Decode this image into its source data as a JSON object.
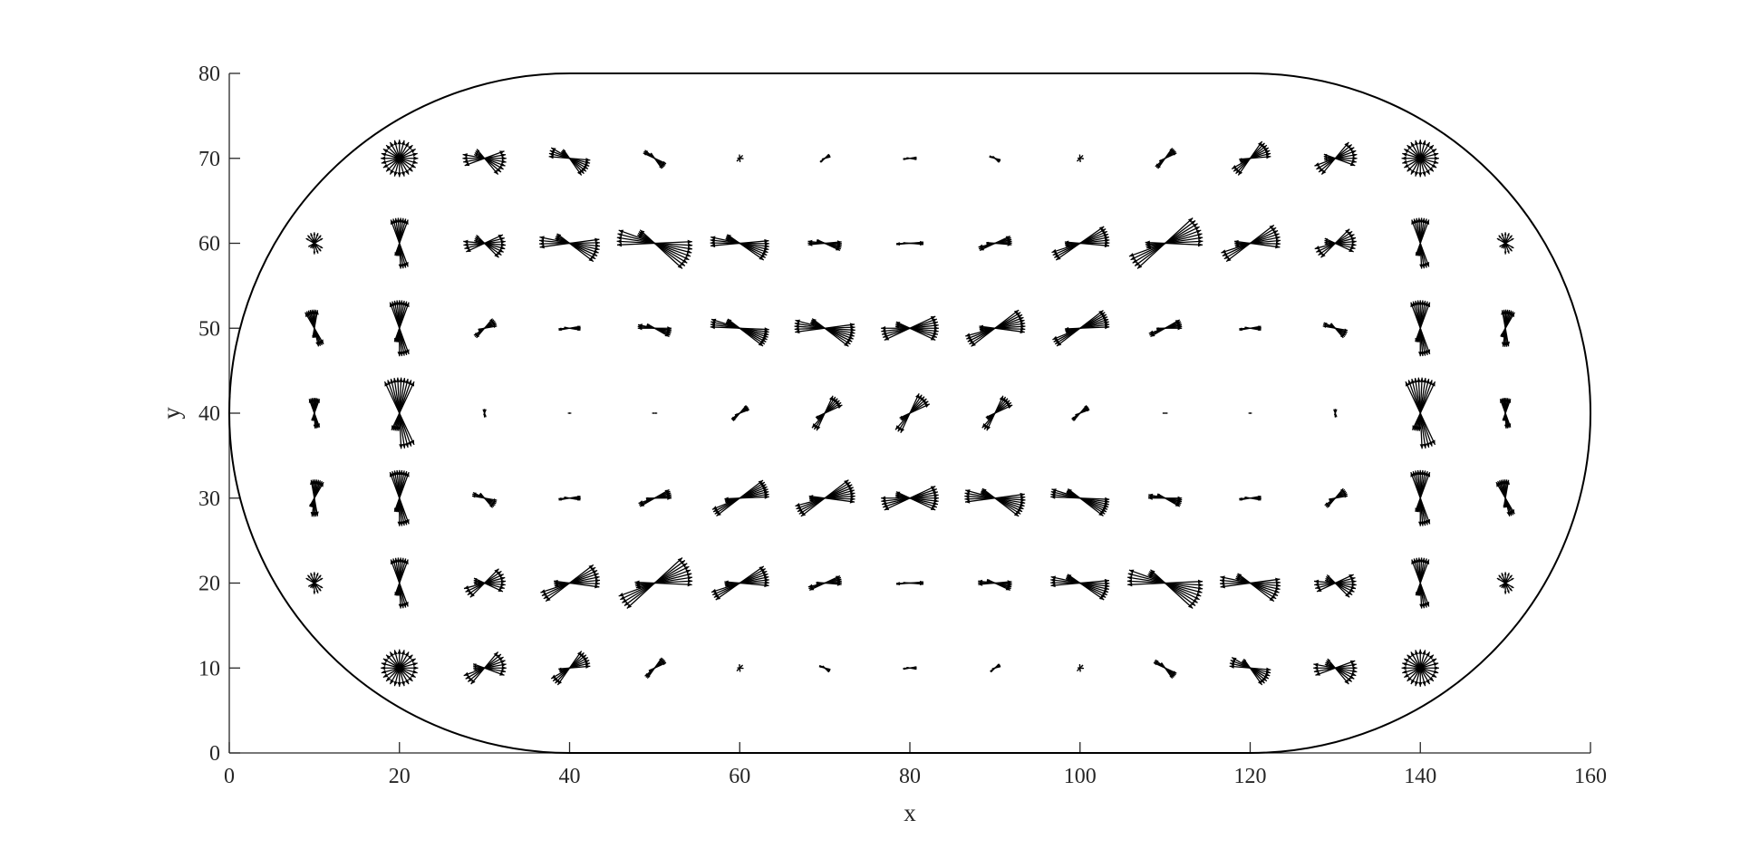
{
  "chart_data": {
    "type": "quiver",
    "title": "",
    "xlabel": "x",
    "ylabel": "y",
    "xlim": [
      0,
      160
    ],
    "ylim": [
      0,
      80
    ],
    "xticks": [
      0,
      20,
      40,
      60,
      80,
      100,
      120,
      140,
      160
    ],
    "yticks": [
      0,
      10,
      20,
      30,
      40,
      50,
      60,
      70,
      80
    ],
    "grid": false,
    "line_color": "#000000",
    "axis_color": "#262626",
    "boundary": {
      "shape": "stadium",
      "straight_x": [
        40,
        120
      ],
      "y": [
        0,
        80
      ],
      "left_cap_center": [
        40,
        40
      ],
      "right_cap_center": [
        120,
        40
      ],
      "cap_radius": 40
    },
    "glyphs": [
      {
        "x": 20,
        "y": 70,
        "rays": 24,
        "length": 2.2,
        "angle": 0,
        "spread": 360
      },
      {
        "x": 30,
        "y": 70,
        "rays": 16,
        "length": 2.6,
        "angle": -15,
        "spread": 70
      },
      {
        "x": 40,
        "y": 70,
        "rays": 14,
        "length": 2.5,
        "angle": -30,
        "spread": 50
      },
      {
        "x": 50,
        "y": 70,
        "rays": 10,
        "length": 1.5,
        "angle": -40,
        "spread": 30
      },
      {
        "x": 60,
        "y": 70,
        "rays": 6,
        "length": 0.5,
        "angle": 45,
        "spread": 100
      },
      {
        "x": 70,
        "y": 70,
        "rays": 8,
        "length": 0.7,
        "angle": 30,
        "spread": 30
      },
      {
        "x": 80,
        "y": 70,
        "rays": 8,
        "length": 0.8,
        "angle": 0,
        "spread": 20
      },
      {
        "x": 90,
        "y": 70,
        "rays": 8,
        "length": 0.7,
        "angle": -30,
        "spread": 30
      },
      {
        "x": 100,
        "y": 70,
        "rays": 6,
        "length": 0.5,
        "angle": 45,
        "spread": 100
      },
      {
        "x": 110,
        "y": 70,
        "rays": 10,
        "length": 1.5,
        "angle": 40,
        "spread": 30
      },
      {
        "x": 120,
        "y": 70,
        "rays": 14,
        "length": 2.5,
        "angle": 30,
        "spread": 50
      },
      {
        "x": 130,
        "y": 70,
        "rays": 16,
        "length": 2.6,
        "angle": 15,
        "spread": 70
      },
      {
        "x": 140,
        "y": 70,
        "rays": 24,
        "length": 2.2,
        "angle": 0,
        "spread": 360
      },
      {
        "x": 10,
        "y": 60,
        "rays": 14,
        "length": 1.3,
        "angle": 90,
        "spread": 120
      },
      {
        "x": 20,
        "y": 60,
        "rays": 16,
        "length": 3.0,
        "angle": 90,
        "spread": 40
      },
      {
        "x": 30,
        "y": 60,
        "rays": 16,
        "length": 2.5,
        "angle": -10,
        "spread": 70
      },
      {
        "x": 40,
        "y": 60,
        "rays": 16,
        "length": 3.6,
        "angle": -15,
        "spread": 45
      },
      {
        "x": 50,
        "y": 60,
        "rays": 18,
        "length": 4.5,
        "angle": -20,
        "spread": 45
      },
      {
        "x": 60,
        "y": 60,
        "rays": 16,
        "length": 3.5,
        "angle": -15,
        "spread": 40
      },
      {
        "x": 70,
        "y": 60,
        "rays": 12,
        "length": 2.0,
        "angle": -10,
        "spread": 30
      },
      {
        "x": 80,
        "y": 60,
        "rays": 8,
        "length": 1.6,
        "angle": 0,
        "spread": 10
      },
      {
        "x": 90,
        "y": 60,
        "rays": 12,
        "length": 2.0,
        "angle": 10,
        "spread": 30
      },
      {
        "x": 100,
        "y": 60,
        "rays": 16,
        "length": 3.5,
        "angle": 15,
        "spread": 40
      },
      {
        "x": 110,
        "y": 60,
        "rays": 18,
        "length": 4.5,
        "angle": 20,
        "spread": 45
      },
      {
        "x": 120,
        "y": 60,
        "rays": 16,
        "length": 3.6,
        "angle": 15,
        "spread": 45
      },
      {
        "x": 130,
        "y": 60,
        "rays": 16,
        "length": 2.5,
        "angle": 10,
        "spread": 70
      },
      {
        "x": 140,
        "y": 60,
        "rays": 16,
        "length": 3.0,
        "angle": 90,
        "spread": 40
      },
      {
        "x": 150,
        "y": 60,
        "rays": 14,
        "length": 1.3,
        "angle": 90,
        "spread": 120
      },
      {
        "x": 10,
        "y": 50,
        "rays": 16,
        "length": 2.2,
        "angle": 100,
        "spread": 40
      },
      {
        "x": 20,
        "y": 50,
        "rays": 18,
        "length": 3.3,
        "angle": 90,
        "spread": 40
      },
      {
        "x": 30,
        "y": 50,
        "rays": 12,
        "length": 1.5,
        "angle": 30,
        "spread": 40
      },
      {
        "x": 40,
        "y": 50,
        "rays": 8,
        "length": 1.3,
        "angle": 0,
        "spread": 20
      },
      {
        "x": 50,
        "y": 50,
        "rays": 12,
        "length": 2.0,
        "angle": -15,
        "spread": 30
      },
      {
        "x": 60,
        "y": 50,
        "rays": 16,
        "length": 3.5,
        "angle": -20,
        "spread": 35
      },
      {
        "x": 70,
        "y": 50,
        "rays": 18,
        "length": 3.6,
        "angle": -15,
        "spread": 45
      },
      {
        "x": 80,
        "y": 50,
        "rays": 18,
        "length": 3.4,
        "angle": 0,
        "spread": 50
      },
      {
        "x": 90,
        "y": 50,
        "rays": 18,
        "length": 3.6,
        "angle": 15,
        "spread": 45
      },
      {
        "x": 100,
        "y": 50,
        "rays": 16,
        "length": 3.5,
        "angle": 20,
        "spread": 35
      },
      {
        "x": 110,
        "y": 50,
        "rays": 12,
        "length": 2.0,
        "angle": 15,
        "spread": 30
      },
      {
        "x": 120,
        "y": 50,
        "rays": 8,
        "length": 1.3,
        "angle": 0,
        "spread": 20
      },
      {
        "x": 130,
        "y": 50,
        "rays": 12,
        "length": 1.5,
        "angle": -30,
        "spread": 40
      },
      {
        "x": 140,
        "y": 50,
        "rays": 18,
        "length": 3.3,
        "angle": 90,
        "spread": 40
      },
      {
        "x": 150,
        "y": 50,
        "rays": 16,
        "length": 2.2,
        "angle": 80,
        "spread": 40
      },
      {
        "x": 10,
        "y": 40,
        "rays": 16,
        "length": 1.8,
        "angle": 90,
        "spread": 40
      },
      {
        "x": 20,
        "y": 40,
        "rays": 20,
        "length": 4.2,
        "angle": 90,
        "spread": 50
      },
      {
        "x": 30,
        "y": 40,
        "rays": 6,
        "length": 0.5,
        "angle": 90,
        "spread": 40
      },
      {
        "x": 40,
        "y": 40,
        "rays": 2,
        "length": 0.2,
        "angle": 0,
        "spread": 0
      },
      {
        "x": 50,
        "y": 40,
        "rays": 2,
        "length": 0.3,
        "angle": 0,
        "spread": 0
      },
      {
        "x": 60,
        "y": 40,
        "rays": 10,
        "length": 1.2,
        "angle": 35,
        "spread": 30
      },
      {
        "x": 70,
        "y": 40,
        "rays": 12,
        "length": 2.3,
        "angle": 45,
        "spread": 40
      },
      {
        "x": 80,
        "y": 40,
        "rays": 12,
        "length": 2.6,
        "angle": 45,
        "spread": 40
      },
      {
        "x": 90,
        "y": 40,
        "rays": 12,
        "length": 2.3,
        "angle": 45,
        "spread": 40
      },
      {
        "x": 100,
        "y": 40,
        "rays": 10,
        "length": 1.2,
        "angle": 35,
        "spread": 30
      },
      {
        "x": 110,
        "y": 40,
        "rays": 2,
        "length": 0.3,
        "angle": 0,
        "spread": 0
      },
      {
        "x": 120,
        "y": 40,
        "rays": 2,
        "length": 0.2,
        "angle": 0,
        "spread": 0
      },
      {
        "x": 130,
        "y": 40,
        "rays": 6,
        "length": 0.5,
        "angle": 90,
        "spread": 40
      },
      {
        "x": 140,
        "y": 40,
        "rays": 20,
        "length": 4.2,
        "angle": 90,
        "spread": 50
      },
      {
        "x": 150,
        "y": 40,
        "rays": 16,
        "length": 1.8,
        "angle": 90,
        "spread": 40
      },
      {
        "x": 10,
        "y": 30,
        "rays": 16,
        "length": 2.2,
        "angle": 80,
        "spread": 40
      },
      {
        "x": 20,
        "y": 30,
        "rays": 18,
        "length": 3.3,
        "angle": 90,
        "spread": 40
      },
      {
        "x": 30,
        "y": 30,
        "rays": 12,
        "length": 1.5,
        "angle": -30,
        "spread": 40
      },
      {
        "x": 40,
        "y": 30,
        "rays": 8,
        "length": 1.3,
        "angle": 0,
        "spread": 20
      },
      {
        "x": 50,
        "y": 30,
        "rays": 12,
        "length": 2.0,
        "angle": 15,
        "spread": 30
      },
      {
        "x": 60,
        "y": 30,
        "rays": 16,
        "length": 3.5,
        "angle": 20,
        "spread": 35
      },
      {
        "x": 70,
        "y": 30,
        "rays": 18,
        "length": 3.6,
        "angle": 15,
        "spread": 45
      },
      {
        "x": 80,
        "y": 30,
        "rays": 18,
        "length": 3.4,
        "angle": 0,
        "spread": 50
      },
      {
        "x": 90,
        "y": 30,
        "rays": 18,
        "length": 3.6,
        "angle": -15,
        "spread": 45
      },
      {
        "x": 100,
        "y": 30,
        "rays": 16,
        "length": 3.5,
        "angle": -20,
        "spread": 35
      },
      {
        "x": 110,
        "y": 30,
        "rays": 12,
        "length": 2.0,
        "angle": -15,
        "spread": 30
      },
      {
        "x": 120,
        "y": 30,
        "rays": 8,
        "length": 1.3,
        "angle": 0,
        "spread": 20
      },
      {
        "x": 130,
        "y": 30,
        "rays": 12,
        "length": 1.5,
        "angle": 30,
        "spread": 40
      },
      {
        "x": 140,
        "y": 30,
        "rays": 18,
        "length": 3.3,
        "angle": 90,
        "spread": 40
      },
      {
        "x": 150,
        "y": 30,
        "rays": 16,
        "length": 2.2,
        "angle": 100,
        "spread": 40
      },
      {
        "x": 10,
        "y": 20,
        "rays": 14,
        "length": 1.3,
        "angle": 90,
        "spread": 120
      },
      {
        "x": 20,
        "y": 20,
        "rays": 16,
        "length": 3.0,
        "angle": 90,
        "spread": 40
      },
      {
        "x": 30,
        "y": 20,
        "rays": 16,
        "length": 2.5,
        "angle": 10,
        "spread": 70
      },
      {
        "x": 40,
        "y": 20,
        "rays": 16,
        "length": 3.6,
        "angle": 15,
        "spread": 45
      },
      {
        "x": 50,
        "y": 20,
        "rays": 18,
        "length": 4.5,
        "angle": 20,
        "spread": 45
      },
      {
        "x": 60,
        "y": 20,
        "rays": 16,
        "length": 3.5,
        "angle": 15,
        "spread": 40
      },
      {
        "x": 70,
        "y": 20,
        "rays": 12,
        "length": 2.0,
        "angle": 10,
        "spread": 30
      },
      {
        "x": 80,
        "y": 20,
        "rays": 8,
        "length": 1.6,
        "angle": 0,
        "spread": 10
      },
      {
        "x": 90,
        "y": 20,
        "rays": 12,
        "length": 2.0,
        "angle": -10,
        "spread": 30
      },
      {
        "x": 100,
        "y": 20,
        "rays": 16,
        "length": 3.5,
        "angle": -15,
        "spread": 40
      },
      {
        "x": 110,
        "y": 20,
        "rays": 18,
        "length": 4.5,
        "angle": -20,
        "spread": 45
      },
      {
        "x": 120,
        "y": 20,
        "rays": 16,
        "length": 3.6,
        "angle": -15,
        "spread": 45
      },
      {
        "x": 130,
        "y": 20,
        "rays": 16,
        "length": 2.5,
        "angle": -10,
        "spread": 70
      },
      {
        "x": 140,
        "y": 20,
        "rays": 16,
        "length": 3.0,
        "angle": 90,
        "spread": 40
      },
      {
        "x": 150,
        "y": 20,
        "rays": 14,
        "length": 1.3,
        "angle": 90,
        "spread": 120
      },
      {
        "x": 20,
        "y": 10,
        "rays": 24,
        "length": 2.2,
        "angle": 0,
        "spread": 360
      },
      {
        "x": 30,
        "y": 10,
        "rays": 16,
        "length": 2.6,
        "angle": 15,
        "spread": 70
      },
      {
        "x": 40,
        "y": 10,
        "rays": 14,
        "length": 2.5,
        "angle": 30,
        "spread": 50
      },
      {
        "x": 50,
        "y": 10,
        "rays": 10,
        "length": 1.5,
        "angle": 40,
        "spread": 30
      },
      {
        "x": 60,
        "y": 10,
        "rays": 6,
        "length": 0.5,
        "angle": 45,
        "spread": 100
      },
      {
        "x": 70,
        "y": 10,
        "rays": 8,
        "length": 0.7,
        "angle": -30,
        "spread": 30
      },
      {
        "x": 80,
        "y": 10,
        "rays": 8,
        "length": 0.8,
        "angle": 0,
        "spread": 20
      },
      {
        "x": 90,
        "y": 10,
        "rays": 8,
        "length": 0.7,
        "angle": 30,
        "spread": 30
      },
      {
        "x": 100,
        "y": 10,
        "rays": 6,
        "length": 0.5,
        "angle": 45,
        "spread": 100
      },
      {
        "x": 110,
        "y": 10,
        "rays": 10,
        "length": 1.5,
        "angle": -40,
        "spread": 30
      },
      {
        "x": 120,
        "y": 10,
        "rays": 14,
        "length": 2.5,
        "angle": -30,
        "spread": 50
      },
      {
        "x": 130,
        "y": 10,
        "rays": 16,
        "length": 2.6,
        "angle": -15,
        "spread": 70
      },
      {
        "x": 140,
        "y": 10,
        "rays": 24,
        "length": 2.2,
        "angle": 0,
        "spread": 360
      }
    ]
  }
}
